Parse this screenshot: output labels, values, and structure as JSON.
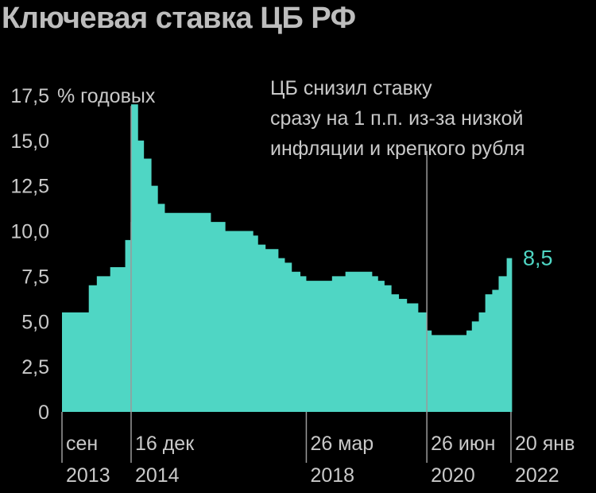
{
  "chart_data": {
    "type": "area",
    "title": "Ключевая ставка ЦБ РФ",
    "ylabel": "% годовых",
    "ylim": [
      0,
      17.5
    ],
    "yticks": [
      "0",
      "2,5",
      "5,0",
      "7,5",
      "10,0",
      "12,5",
      "15,0",
      "17,5"
    ],
    "ytick_values": [
      0,
      2.5,
      5,
      7.5,
      10,
      12.5,
      15,
      17.5
    ],
    "xlim": [
      2013.67,
      2022.1
    ],
    "x_markers": [
      {
        "x": 2013.67,
        "line1": "сен",
        "line2": "2013"
      },
      {
        "x": 2014.96,
        "line1": "16 дек",
        "line2": "2014"
      },
      {
        "x": 2018.23,
        "line1": "26 мар",
        "line2": "2018"
      },
      {
        "x": 2020.48,
        "line1": "26 июн",
        "line2": "2020"
      },
      {
        "x": 2022.05,
        "line1": "20 янв",
        "line2": "2022"
      }
    ],
    "annotation": [
      "ЦБ снизил ставку",
      "сразу на 1 п.п. из-за низкой",
      "инфляции и крепкого рубля"
    ],
    "last_label": "8,5",
    "color": "#4fd6c4",
    "steps": [
      [
        2013.67,
        5.5
      ],
      [
        2014.17,
        7.0
      ],
      [
        2014.32,
        7.5
      ],
      [
        2014.57,
        8.0
      ],
      [
        2014.85,
        9.5
      ],
      [
        2014.95,
        10.5
      ],
      [
        2014.96,
        17.0
      ],
      [
        2015.09,
        15.0
      ],
      [
        2015.2,
        14.0
      ],
      [
        2015.34,
        12.5
      ],
      [
        2015.46,
        11.5
      ],
      [
        2015.59,
        11.0
      ],
      [
        2016.45,
        10.5
      ],
      [
        2016.72,
        10.0
      ],
      [
        2017.24,
        9.75
      ],
      [
        2017.33,
        9.25
      ],
      [
        2017.47,
        9.0
      ],
      [
        2017.71,
        8.5
      ],
      [
        2017.83,
        8.25
      ],
      [
        2017.96,
        7.75
      ],
      [
        2018.12,
        7.5
      ],
      [
        2018.23,
        7.25
      ],
      [
        2018.71,
        7.5
      ],
      [
        2018.96,
        7.75
      ],
      [
        2019.46,
        7.5
      ],
      [
        2019.57,
        7.25
      ],
      [
        2019.69,
        7.0
      ],
      [
        2019.82,
        6.5
      ],
      [
        2019.96,
        6.25
      ],
      [
        2020.11,
        6.0
      ],
      [
        2020.32,
        5.5
      ],
      [
        2020.48,
        4.5
      ],
      [
        2020.57,
        4.25
      ],
      [
        2021.22,
        4.5
      ],
      [
        2021.32,
        5.0
      ],
      [
        2021.45,
        5.5
      ],
      [
        2021.57,
        6.5
      ],
      [
        2021.7,
        6.75
      ],
      [
        2021.82,
        7.5
      ],
      [
        2021.97,
        8.5
      ]
    ]
  }
}
